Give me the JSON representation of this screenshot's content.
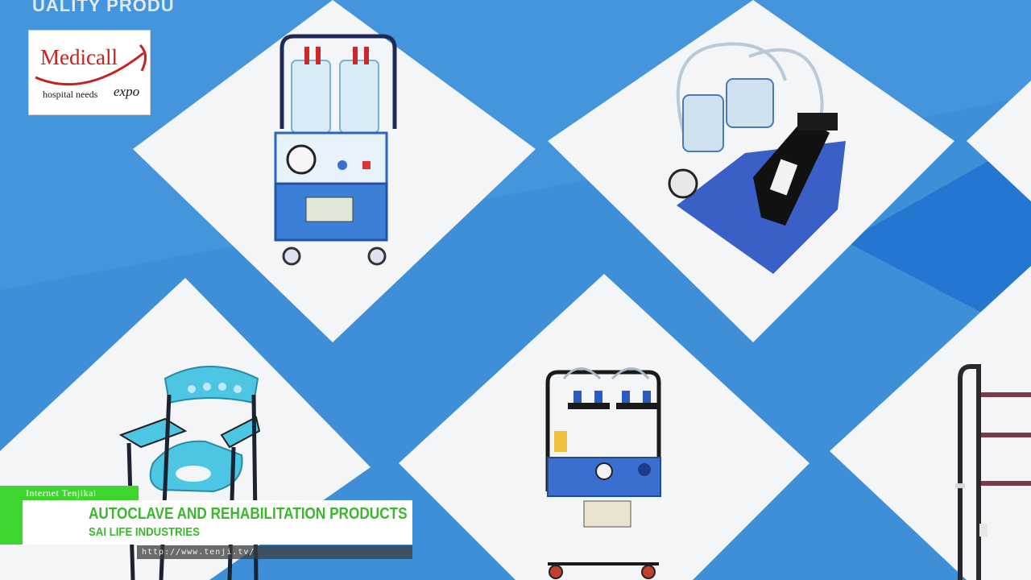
{
  "scene": {
    "banner_top_text": "UALITY PRODU",
    "products": [
      "suction-machine-twin-jar",
      "vacuum-pump-unit",
      "commode-chair",
      "suction-trolley",
      "walker-frame"
    ]
  },
  "logo": {
    "brand": "Medicall",
    "tagline": "hospital needs",
    "expo": "expo"
  },
  "overlay": {
    "channel": "Internet Tenjikai",
    "title": "AUTOCLAVE AND REHABILITATION PRODUCTS",
    "subtitle": "SAI LIFE INDUSTRIES",
    "url": "http://www.tenji.tv/"
  },
  "colors": {
    "banner_blue": "#3f8fd8",
    "accent_green": "#3ed62e",
    "text_green": "#3ab82c",
    "logo_red": "#c8201f"
  }
}
